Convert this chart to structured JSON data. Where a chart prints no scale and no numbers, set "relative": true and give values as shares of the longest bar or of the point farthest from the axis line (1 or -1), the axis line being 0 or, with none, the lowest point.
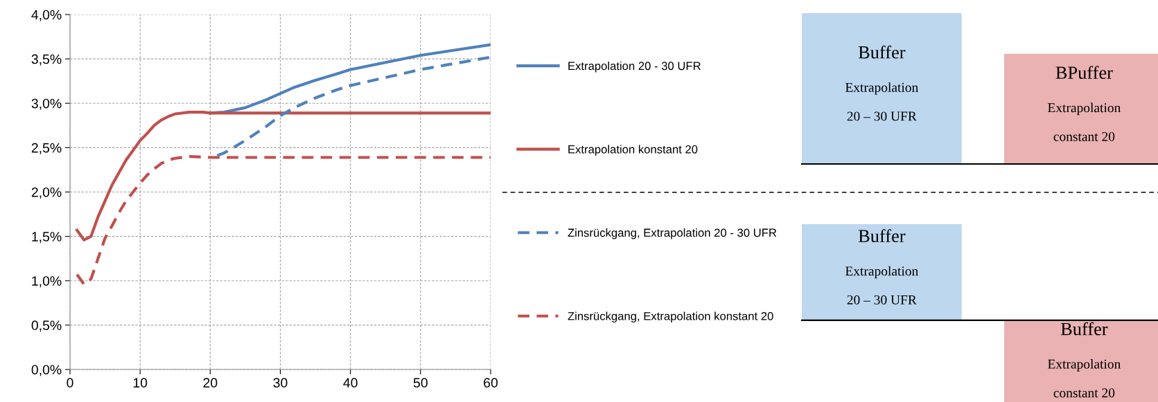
{
  "chart_data": [
    {
      "type": "line",
      "xlim": [
        0,
        60
      ],
      "ylim": [
        0,
        4
      ],
      "xticks": [
        0,
        10,
        20,
        30,
        40,
        50,
        60
      ],
      "yticks": [
        {
          "value": 0,
          "label": "0,0%"
        },
        {
          "value": 0.5,
          "label": "0,5%"
        },
        {
          "value": 1,
          "label": "1,0%"
        },
        {
          "value": 1.5,
          "label": "1,5%"
        },
        {
          "value": 2,
          "label": "2,0%"
        },
        {
          "value": 2.5,
          "label": "2,5%"
        },
        {
          "value": 3,
          "label": "3,0%"
        },
        {
          "value": 3.5,
          "label": "3,5%"
        },
        {
          "value": 4,
          "label": "4,0%"
        }
      ],
      "grid": true,
      "legend": "right",
      "marker": "none",
      "series": [
        {
          "name": "Extrapolation 20 - 30 UFR",
          "color": "#4f81bd",
          "line_style": "solid",
          "x": [
            20,
            22,
            25,
            28,
            30,
            32,
            35,
            38,
            40,
            45,
            50,
            55,
            60
          ],
          "values": [
            2.89,
            2.9,
            2.95,
            3.04,
            3.11,
            3.18,
            3.26,
            3.33,
            3.38,
            3.46,
            3.54,
            3.6,
            3.66
          ]
        },
        {
          "name": "Extrapolation konstant 20",
          "color": "#c0504d",
          "line_style": "solid",
          "x": [
            1,
            2,
            3,
            4,
            5,
            6,
            7,
            8,
            9,
            10,
            11,
            12,
            13,
            14,
            15,
            17,
            19,
            20,
            60
          ],
          "values": [
            1.57,
            1.46,
            1.5,
            1.72,
            1.9,
            2.08,
            2.22,
            2.36,
            2.47,
            2.58,
            2.66,
            2.75,
            2.81,
            2.85,
            2.88,
            2.9,
            2.9,
            2.89,
            2.89
          ]
        },
        {
          "name": "Zinsrückgang, Extrapolation 20 - 30 UFR",
          "color": "#4f81bd",
          "line_style": "dashed",
          "x": [
            21,
            22,
            25,
            28,
            30,
            32,
            35,
            38,
            40,
            45,
            50,
            55,
            60
          ],
          "values": [
            2.41,
            2.44,
            2.58,
            2.74,
            2.86,
            2.95,
            3.06,
            3.15,
            3.2,
            3.29,
            3.38,
            3.45,
            3.52
          ]
        },
        {
          "name": "Zinsrückgang, Extrapolation konstant 20",
          "color": "#c0504d",
          "line_style": "dashed",
          "x": [
            1,
            2,
            3,
            4,
            5,
            6,
            7,
            8,
            9,
            10,
            11,
            12,
            13,
            14,
            15,
            17,
            20,
            60
          ],
          "values": [
            1.07,
            0.96,
            1.02,
            1.25,
            1.48,
            1.62,
            1.77,
            1.9,
            2.0,
            2.1,
            2.19,
            2.26,
            2.32,
            2.36,
            2.38,
            2.4,
            2.39,
            2.39
          ]
        }
      ]
    },
    {
      "type": "bar",
      "relative": true,
      "categories": [
        null,
        null
      ],
      "values": [
        1,
        0.73
      ],
      "colors": [
        "#bdd7ee",
        "#eab2b2"
      ],
      "annotations": [
        "Buffer\nExtrapolation\n20 – 30 UFR",
        "BPuffer\nExtrapolation\nconstant 20"
      ]
    },
    {
      "type": "bar",
      "relative": true,
      "categories": [
        null,
        null
      ],
      "values": [
        1,
        -0.85
      ],
      "colors": [
        "#bdd7ee",
        "#eab2b2"
      ],
      "annotations": [
        "Buffer\nExtrapolation\n20 – 30 UFR",
        "Buffer\nExtrapolation\nconstant 20"
      ]
    }
  ]
}
